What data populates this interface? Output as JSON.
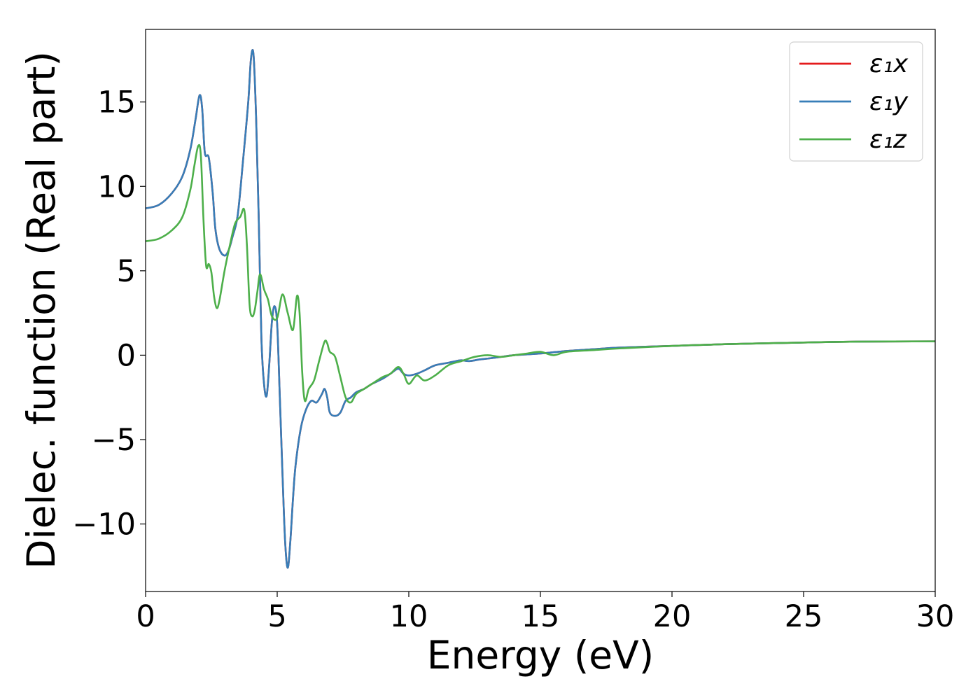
{
  "chart_data": {
    "type": "line",
    "title": "",
    "xlabel": "Energy (eV)",
    "ylabel": "Dielec. function (Real part)",
    "xlim": [
      0,
      30
    ],
    "ylim": [
      -14,
      19.3
    ],
    "xticks": [
      0,
      5,
      10,
      15,
      20,
      25,
      30
    ],
    "xtick_labels": [
      "0",
      "5",
      "10",
      "15",
      "20",
      "25",
      "30"
    ],
    "yticks": [
      -10,
      -5,
      0,
      5,
      10,
      15
    ],
    "ytick_labels": [
      "−10",
      "−5",
      "0",
      "5",
      "10",
      "15"
    ],
    "grid": false,
    "legend_position": "top-right",
    "series": [
      {
        "name": "ε₁x",
        "color": "#e41a1c",
        "x": [
          0,
          0.5,
          1.0,
          1.4,
          1.7,
          1.9,
          2.05,
          2.15,
          2.25,
          2.4,
          2.55,
          2.65,
          2.8,
          3.0,
          3.15,
          3.3,
          3.5,
          3.7,
          3.9,
          4.0,
          4.1,
          4.2,
          4.3,
          4.4,
          4.5,
          4.6,
          4.7,
          4.8,
          4.9,
          5.0,
          5.1,
          5.2,
          5.3,
          5.4,
          5.5,
          5.6,
          5.7,
          5.9,
          6.1,
          6.3,
          6.5,
          6.7,
          6.8,
          6.9,
          7.0,
          7.2,
          7.4,
          7.6,
          7.8,
          8.0,
          8.3,
          8.6,
          9.0,
          9.3,
          9.6,
          9.8,
          10.0,
          10.3,
          10.6,
          11.0,
          11.5,
          11.8,
          12.0,
          12.3,
          12.7,
          13.0,
          13.5,
          14.0,
          15.0,
          16.0,
          17.0,
          18.0,
          20.0,
          22.0,
          25.0,
          27.0,
          30.0
        ],
        "values": [
          8.7,
          8.9,
          9.6,
          10.6,
          12.2,
          14.0,
          15.4,
          14.6,
          12.0,
          11.7,
          9.6,
          7.5,
          6.3,
          5.9,
          6.2,
          7.0,
          8.3,
          11.5,
          15.0,
          17.5,
          17.8,
          14.0,
          8.0,
          1.0,
          -1.7,
          -2.4,
          -0.5,
          2.0,
          2.9,
          1.8,
          -2.5,
          -7.0,
          -11.0,
          -12.6,
          -11.0,
          -8.5,
          -6.5,
          -4.3,
          -3.2,
          -2.7,
          -2.8,
          -2.3,
          -2.0,
          -2.5,
          -3.4,
          -3.6,
          -3.4,
          -2.7,
          -2.5,
          -2.2,
          -2.0,
          -1.7,
          -1.4,
          -1.1,
          -0.8,
          -1.1,
          -1.2,
          -1.1,
          -0.9,
          -0.6,
          -0.45,
          -0.35,
          -0.3,
          -0.35,
          -0.25,
          -0.2,
          -0.1,
          0.0,
          0.1,
          0.25,
          0.35,
          0.45,
          0.55,
          0.65,
          0.75,
          0.8,
          0.82
        ]
      },
      {
        "name": "ε₁y",
        "color": "#377eb8",
        "x": [
          0,
          0.5,
          1.0,
          1.4,
          1.7,
          1.9,
          2.05,
          2.15,
          2.25,
          2.4,
          2.55,
          2.65,
          2.8,
          3.0,
          3.15,
          3.3,
          3.5,
          3.7,
          3.9,
          4.0,
          4.1,
          4.2,
          4.3,
          4.4,
          4.5,
          4.6,
          4.7,
          4.8,
          4.9,
          5.0,
          5.1,
          5.2,
          5.3,
          5.4,
          5.5,
          5.6,
          5.7,
          5.9,
          6.1,
          6.3,
          6.5,
          6.7,
          6.8,
          6.9,
          7.0,
          7.2,
          7.4,
          7.6,
          7.8,
          8.0,
          8.3,
          8.6,
          9.0,
          9.3,
          9.6,
          9.8,
          10.0,
          10.3,
          10.6,
          11.0,
          11.5,
          11.8,
          12.0,
          12.3,
          12.7,
          13.0,
          13.5,
          14.0,
          15.0,
          16.0,
          17.0,
          18.0,
          20.0,
          22.0,
          25.0,
          27.0,
          30.0
        ],
        "values": [
          8.7,
          8.9,
          9.6,
          10.6,
          12.2,
          14.0,
          15.4,
          14.6,
          12.0,
          11.7,
          9.6,
          7.5,
          6.3,
          5.9,
          6.2,
          7.0,
          8.3,
          11.5,
          15.0,
          17.5,
          17.8,
          14.0,
          8.0,
          1.0,
          -1.7,
          -2.4,
          -0.5,
          2.0,
          2.9,
          1.8,
          -2.5,
          -7.0,
          -11.0,
          -12.6,
          -11.0,
          -8.5,
          -6.5,
          -4.3,
          -3.2,
          -2.7,
          -2.8,
          -2.3,
          -2.0,
          -2.5,
          -3.4,
          -3.6,
          -3.4,
          -2.7,
          -2.5,
          -2.2,
          -2.0,
          -1.7,
          -1.4,
          -1.1,
          -0.8,
          -1.1,
          -1.2,
          -1.1,
          -0.9,
          -0.6,
          -0.45,
          -0.35,
          -0.3,
          -0.35,
          -0.25,
          -0.2,
          -0.1,
          0.0,
          0.1,
          0.25,
          0.35,
          0.45,
          0.55,
          0.65,
          0.75,
          0.8,
          0.82
        ]
      },
      {
        "name": "ε₁z",
        "color": "#4daf4a",
        "x": [
          0,
          0.5,
          1.0,
          1.4,
          1.7,
          1.85,
          2.0,
          2.1,
          2.2,
          2.3,
          2.4,
          2.5,
          2.6,
          2.7,
          2.8,
          3.0,
          3.2,
          3.4,
          3.6,
          3.75,
          3.85,
          3.95,
          4.05,
          4.15,
          4.25,
          4.35,
          4.5,
          4.65,
          4.8,
          5.0,
          5.2,
          5.4,
          5.6,
          5.75,
          5.85,
          5.95,
          6.05,
          6.2,
          6.4,
          6.6,
          6.8,
          6.9,
          7.0,
          7.2,
          7.4,
          7.6,
          7.8,
          8.0,
          8.3,
          8.6,
          9.0,
          9.3,
          9.6,
          9.8,
          10.0,
          10.3,
          10.6,
          11.0,
          11.5,
          12.0,
          12.5,
          13.0,
          13.5,
          14.0,
          14.5,
          15.0,
          15.5,
          16.0,
          17.0,
          18.0,
          20.0,
          22.0,
          25.0,
          27.0,
          30.0
        ],
        "values": [
          6.75,
          6.9,
          7.4,
          8.2,
          9.8,
          11.2,
          12.4,
          11.8,
          8.0,
          5.3,
          5.4,
          4.9,
          3.5,
          2.8,
          3.2,
          5.0,
          6.5,
          7.8,
          8.2,
          8.6,
          6.5,
          3.0,
          2.3,
          2.7,
          3.8,
          4.8,
          3.9,
          3.3,
          2.3,
          2.2,
          3.6,
          2.5,
          1.5,
          3.5,
          2.5,
          -1.0,
          -2.7,
          -2.0,
          -1.5,
          -0.3,
          0.8,
          0.7,
          0.2,
          -0.1,
          -1.3,
          -2.5,
          -2.8,
          -2.3,
          -2.0,
          -1.7,
          -1.3,
          -1.1,
          -0.7,
          -1.1,
          -1.7,
          -1.2,
          -1.5,
          -1.2,
          -0.6,
          -0.35,
          -0.1,
          0.0,
          -0.1,
          0.0,
          0.1,
          0.2,
          0.0,
          0.2,
          0.3,
          0.4,
          0.55,
          0.65,
          0.75,
          0.8,
          0.82
        ]
      }
    ]
  }
}
